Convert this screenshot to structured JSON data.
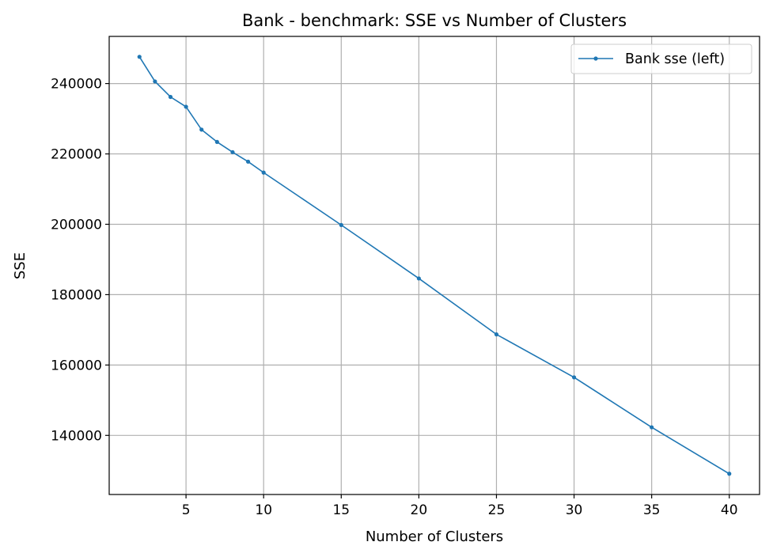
{
  "chart_data": {
    "type": "line",
    "title": "Bank - benchmark: SSE vs Number of Clusters",
    "xlabel": "Number of Clusters",
    "ylabel": "SSE",
    "xlim": [
      0.05,
      41.95
    ],
    "ylim": [
      123200,
      253400
    ],
    "xticks": [
      5,
      10,
      15,
      20,
      25,
      30,
      35,
      40
    ],
    "yticks": [
      140000,
      160000,
      180000,
      200000,
      220000,
      240000
    ],
    "grid": true,
    "legend_position": "upper right",
    "series": [
      {
        "name": "Bank sse (left)",
        "color": "#1f77b4",
        "marker": "circle",
        "x": [
          2,
          3,
          4,
          5,
          6,
          7,
          8,
          9,
          10,
          15,
          20,
          25,
          30,
          35,
          40
        ],
        "y": [
          247600,
          240600,
          236200,
          233400,
          226900,
          223400,
          220500,
          217800,
          214700,
          199800,
          184600,
          168700,
          156500,
          142300,
          129100
        ]
      }
    ]
  }
}
